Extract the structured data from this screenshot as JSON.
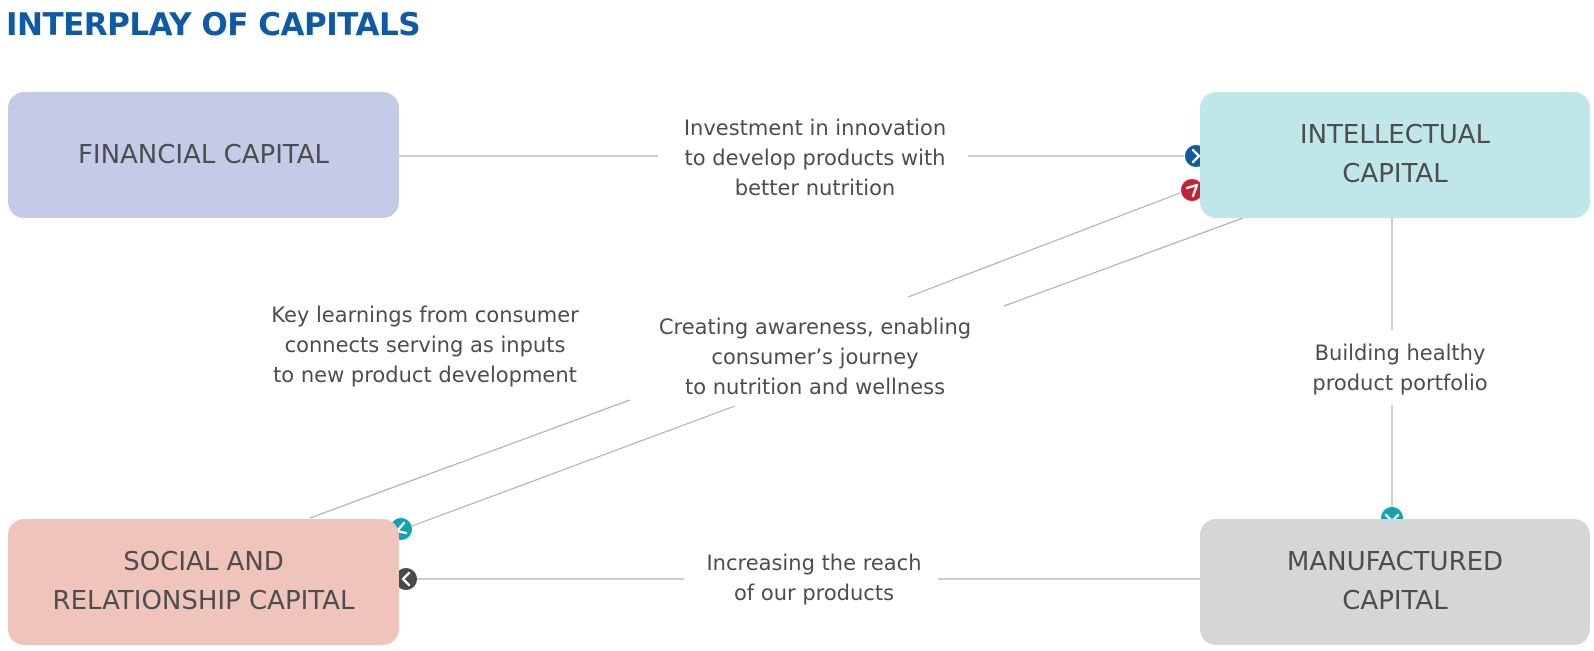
{
  "title": "INTERPLAY OF CAPITALS",
  "nodes": {
    "financial": {
      "lines": [
        "FINANCIAL CAPITAL"
      ],
      "color": "#c3cbe8"
    },
    "intellectual": {
      "lines": [
        "INTELLECTUAL",
        "CAPITAL"
      ],
      "color": "#bfe6e8"
    },
    "social": {
      "lines": [
        "SOCIAL AND",
        "RELATIONSHIP CAPITAL"
      ],
      "color": "#efc4bb"
    },
    "manufactured": {
      "lines": [
        "MANUFACTURED",
        "CAPITAL"
      ],
      "color": "#d5d6d8"
    }
  },
  "edges": {
    "investment": {
      "from": "financial",
      "to": "intellectual",
      "lines": [
        "Investment in innovation",
        "to develop products with",
        "better nutrition"
      ],
      "marker_color": "#0e5aa7"
    },
    "key_learnings": {
      "from": "social",
      "to": "intellectual",
      "lines": [
        "Key learnings from consumer",
        "connects serving as inputs",
        "to new product development"
      ],
      "marker_color": "#c62033"
    },
    "awareness": {
      "from": "intellectual",
      "to": "social",
      "lines": [
        "Creating awareness, enabling",
        "consumer’s journey",
        "to nutrition and wellness"
      ],
      "marker_color": "#12a2b0"
    },
    "building": {
      "from": "intellectual",
      "to": "manufactured",
      "lines": [
        "Building healthy",
        "product portfolio"
      ],
      "marker_color": "#12a2b0"
    },
    "reach": {
      "from": "manufactured",
      "to": "social",
      "lines": [
        "Increasing the reach",
        "of our products"
      ],
      "marker_color": "#4a4a4a"
    }
  },
  "colors": {
    "title": "#0e5aa7",
    "text": "#4d4d4d",
    "connector": "#b0b0b0"
  },
  "icons": {
    "arrow_marker": "chevron-icon"
  }
}
